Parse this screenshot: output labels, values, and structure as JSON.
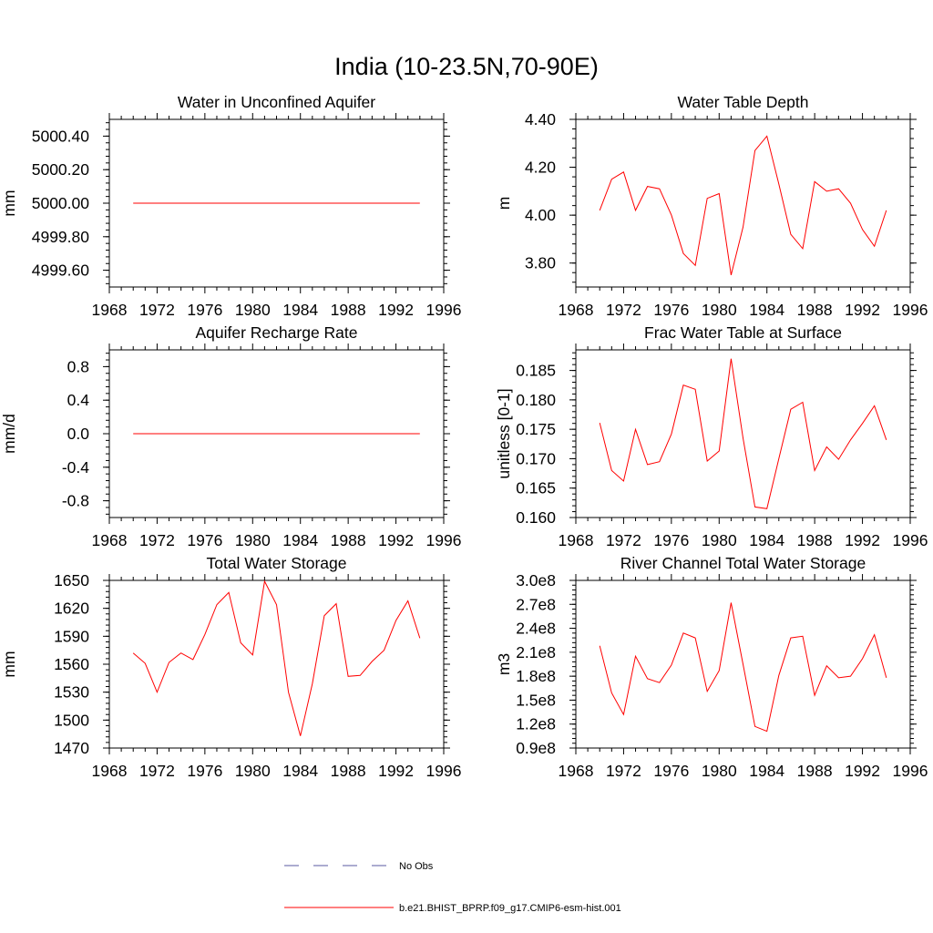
{
  "main_title": "India (10-23.5N,70-90E)",
  "colors": {
    "model": "#ff0000",
    "obs": "#5a5aa0",
    "axis": "#000000"
  },
  "legend": {
    "obs_label": "No Obs",
    "model_label": "b.e21.BHIST_BPRP.f09_g17.CMIP6-esm-hist.001"
  },
  "chart_data": [
    {
      "type": "line",
      "title": "Water in Unconfined Aquifer",
      "ylabel": "mm",
      "xlim": [
        1968,
        1996
      ],
      "ylim": [
        4999.5,
        5000.5
      ],
      "xticks": [
        1968,
        1972,
        1976,
        1980,
        1984,
        1988,
        1992,
        1996
      ],
      "xtick_labels": [
        "1968",
        "1972",
        "1976",
        "1980",
        "1984",
        "1988",
        "1992",
        "1996"
      ],
      "yticks": [
        4999.6,
        4999.8,
        5000.0,
        5000.2,
        5000.4
      ],
      "ytick_labels": [
        "4999.60",
        "4999.80",
        "5000.00",
        "5000.20",
        "5000.40"
      ],
      "series": [
        {
          "x": [
            1970,
            1971,
            1972,
            1973,
            1974,
            1975,
            1976,
            1977,
            1978,
            1979,
            1980,
            1981,
            1982,
            1983,
            1984,
            1985,
            1986,
            1987,
            1988,
            1989,
            1990,
            1991,
            1992,
            1993,
            1994
          ],
          "values": [
            5000,
            5000,
            5000,
            5000,
            5000,
            5000,
            5000,
            5000,
            5000,
            5000,
            5000,
            5000,
            5000,
            5000,
            5000,
            5000,
            5000,
            5000,
            5000,
            5000,
            5000,
            5000,
            5000,
            5000,
            5000
          ]
        }
      ]
    },
    {
      "type": "line",
      "title": "Water Table Depth",
      "ylabel": "m",
      "xlim": [
        1968,
        1996
      ],
      "ylim": [
        3.7,
        4.4
      ],
      "xticks": [
        1968,
        1972,
        1976,
        1980,
        1984,
        1988,
        1992,
        1996
      ],
      "xtick_labels": [
        "1968",
        "1972",
        "1976",
        "1980",
        "1984",
        "1988",
        "1992",
        "1996"
      ],
      "yticks": [
        3.8,
        4.0,
        4.2,
        4.4
      ],
      "ytick_labels": [
        "3.80",
        "4.00",
        "4.20",
        "4.40"
      ],
      "series": [
        {
          "x": [
            1970,
            1971,
            1972,
            1973,
            1974,
            1975,
            1976,
            1977,
            1978,
            1979,
            1980,
            1981,
            1982,
            1983,
            1984,
            1985,
            1986,
            1987,
            1988,
            1989,
            1990,
            1991,
            1992,
            1993,
            1994
          ],
          "values": [
            4.02,
            4.15,
            4.18,
            4.02,
            4.12,
            4.11,
            4.0,
            3.84,
            3.79,
            4.07,
            4.09,
            3.75,
            3.95,
            4.27,
            4.33,
            4.13,
            3.92,
            3.86,
            4.14,
            4.1,
            4.11,
            4.05,
            3.94,
            3.87,
            4.02
          ]
        }
      ]
    },
    {
      "type": "line",
      "title": "Aquifer Recharge Rate",
      "ylabel": "mm/d",
      "xlim": [
        1968,
        1996
      ],
      "ylim": [
        -1.0,
        1.0
      ],
      "xticks": [
        1968,
        1972,
        1976,
        1980,
        1984,
        1988,
        1992,
        1996
      ],
      "xtick_labels": [
        "1968",
        "1972",
        "1976",
        "1980",
        "1984",
        "1988",
        "1992",
        "1996"
      ],
      "yticks": [
        -0.8,
        -0.4,
        0.0,
        0.4,
        0.8
      ],
      "ytick_labels": [
        "-0.8",
        "-0.4",
        "0.0",
        "0.4",
        "0.8"
      ],
      "series": [
        {
          "x": [
            1970,
            1971,
            1972,
            1973,
            1974,
            1975,
            1976,
            1977,
            1978,
            1979,
            1980,
            1981,
            1982,
            1983,
            1984,
            1985,
            1986,
            1987,
            1988,
            1989,
            1990,
            1991,
            1992,
            1993,
            1994
          ],
          "values": [
            0,
            0,
            0,
            0,
            0,
            0,
            0,
            0,
            0,
            0,
            0,
            0,
            0,
            0,
            0,
            0,
            0,
            0,
            0,
            0,
            0,
            0,
            0,
            0,
            0
          ]
        }
      ]
    },
    {
      "type": "line",
      "title": "Frac Water Table at Surface",
      "ylabel": "unitless [0-1]",
      "xlim": [
        1968,
        1996
      ],
      "ylim": [
        0.16,
        0.1885
      ],
      "xticks": [
        1968,
        1972,
        1976,
        1980,
        1984,
        1988,
        1992,
        1996
      ],
      "xtick_labels": [
        "1968",
        "1972",
        "1976",
        "1980",
        "1984",
        "1988",
        "1992",
        "1996"
      ],
      "yticks": [
        0.16,
        0.165,
        0.17,
        0.175,
        0.18,
        0.185
      ],
      "ytick_labels": [
        "0.160",
        "0.165",
        "0.170",
        "0.175",
        "0.180",
        "0.185"
      ],
      "series": [
        {
          "x": [
            1970,
            1971,
            1972,
            1973,
            1974,
            1975,
            1976,
            1977,
            1978,
            1979,
            1980,
            1981,
            1982,
            1983,
            1984,
            1985,
            1986,
            1987,
            1988,
            1989,
            1990,
            1991,
            1992,
            1993,
            1994
          ],
          "values": [
            0.1761,
            0.168,
            0.1662,
            0.175,
            0.169,
            0.1695,
            0.1742,
            0.1825,
            0.1818,
            0.1696,
            0.1713,
            0.187,
            0.1735,
            0.1618,
            0.1615,
            0.17,
            0.1784,
            0.1796,
            0.168,
            0.172,
            0.1699,
            0.1732,
            0.176,
            0.179,
            0.1732
          ]
        }
      ]
    },
    {
      "type": "line",
      "title": "Total Water Storage",
      "ylabel": "mm",
      "xlim": [
        1968,
        1996
      ],
      "ylim": [
        1470,
        1650
      ],
      "xticks": [
        1968,
        1972,
        1976,
        1980,
        1984,
        1988,
        1992,
        1996
      ],
      "xtick_labels": [
        "1968",
        "1972",
        "1976",
        "1980",
        "1984",
        "1988",
        "1992",
        "1996"
      ],
      "yticks": [
        1470,
        1500,
        1530,
        1560,
        1590,
        1620,
        1650
      ],
      "ytick_labels": [
        "1470",
        "1500",
        "1530",
        "1560",
        "1590",
        "1620",
        "1650"
      ],
      "series": [
        {
          "x": [
            1970,
            1971,
            1972,
            1973,
            1974,
            1975,
            1976,
            1977,
            1978,
            1979,
            1980,
            1981,
            1982,
            1983,
            1984,
            1985,
            1986,
            1987,
            1988,
            1989,
            1990,
            1991,
            1992,
            1993,
            1994
          ],
          "values": [
            1572,
            1561,
            1530,
            1562,
            1572,
            1565,
            1592,
            1624,
            1637,
            1583,
            1570,
            1649,
            1624,
            1530,
            1483,
            1539,
            1612,
            1625,
            1547,
            1548,
            1563,
            1575,
            1607,
            1628,
            1588
          ]
        }
      ]
    },
    {
      "type": "line",
      "title": "River Channel Total Water Storage",
      "ylabel": "m3",
      "xlim": [
        1968,
        1996
      ],
      "ylim": [
        90000000,
        300000000
      ],
      "xticks": [
        1968,
        1972,
        1976,
        1980,
        1984,
        1988,
        1992,
        1996
      ],
      "xtick_labels": [
        "1968",
        "1972",
        "1976",
        "1980",
        "1984",
        "1988",
        "1992",
        "1996"
      ],
      "yticks": [
        90000000,
        120000000,
        150000000,
        180000000,
        210000000,
        240000000,
        270000000,
        300000000
      ],
      "ytick_labels": [
        "0.9e8",
        "1.2e8",
        "1.5e8",
        "1.8e8",
        "2.1e8",
        "2.4e8",
        "2.7e8",
        "3.0e8"
      ],
      "series": [
        {
          "x": [
            1970,
            1971,
            1972,
            1973,
            1974,
            1975,
            1976,
            1977,
            1978,
            1979,
            1980,
            1981,
            1982,
            1983,
            1984,
            1985,
            1986,
            1987,
            1988,
            1989,
            1990,
            1991,
            1992,
            1993,
            1994
          ],
          "values": [
            218000000,
            159000000,
            132000000,
            205000000,
            177000000,
            172000000,
            194000000,
            234000000,
            228000000,
            161000000,
            187000000,
            272000000,
            195000000,
            117000000,
            111000000,
            181000000,
            228000000,
            230000000,
            156000000,
            193000000,
            178000000,
            180000000,
            202000000,
            232000000,
            178000000
          ]
        }
      ]
    }
  ]
}
